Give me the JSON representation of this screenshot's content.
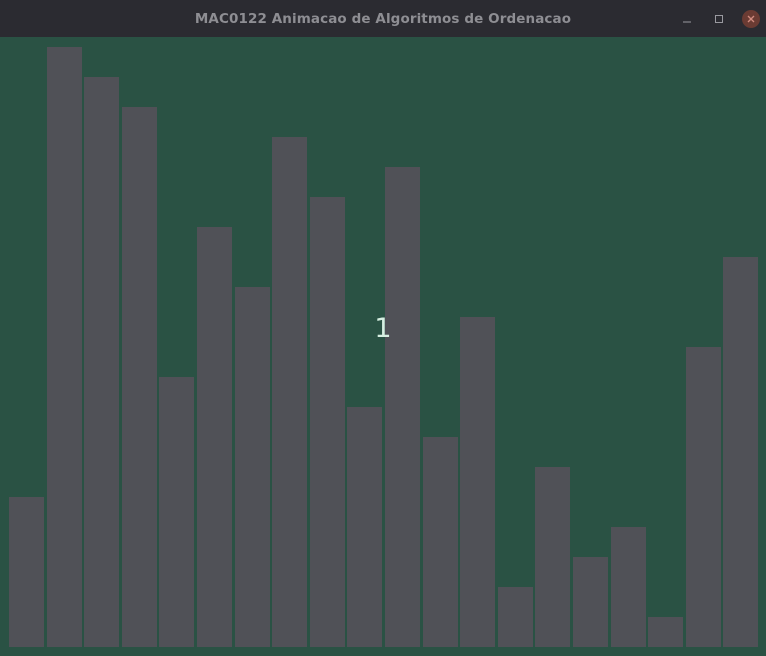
{
  "window": {
    "title": "MAC0122 Animacao de Algoritmos de Ordenacao",
    "controls": {
      "minimize_icon": "minimize-icon",
      "maximize_icon": "maximize-icon",
      "close_icon": "close-icon"
    }
  },
  "canvas": {
    "label": "1",
    "colors": {
      "background": "#2a5244",
      "bar": "#505157",
      "label": "#d7efe2"
    }
  },
  "chart_data": {
    "type": "bar",
    "values": [
      5,
      20,
      19,
      18,
      9,
      14,
      12,
      17,
      15,
      8,
      16,
      7,
      11,
      2,
      6,
      3,
      4,
      1,
      10,
      13
    ],
    "ylim": [
      0,
      20
    ]
  }
}
